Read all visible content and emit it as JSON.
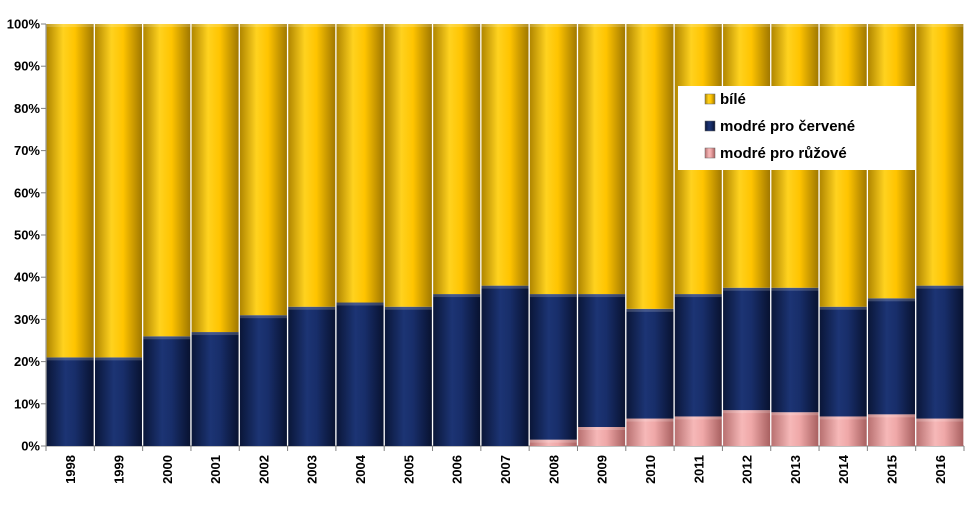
{
  "chart_data": {
    "type": "bar",
    "stacked": true,
    "percent_stacked": true,
    "categories": [
      "1998",
      "1999",
      "2000",
      "2001",
      "2002",
      "2003",
      "2004",
      "2005",
      "2006",
      "2007",
      "2008",
      "2009",
      "2010",
      "2011",
      "2012",
      "2013",
      "2014",
      "2015",
      "2016"
    ],
    "series": [
      {
        "name": "modré pro růžové",
        "color": "#E8A0A0",
        "values": [
          0,
          0,
          0,
          0,
          0,
          0,
          0,
          0,
          0,
          0,
          1.5,
          4.5,
          6.5,
          7,
          8.5,
          8,
          7,
          7.5,
          6.5
        ]
      },
      {
        "name": "modré pro červené",
        "color": "#14285E",
        "values": [
          21,
          21,
          26,
          27,
          31,
          33,
          34,
          33,
          36,
          38,
          34.5,
          31.5,
          26,
          29,
          29,
          29.5,
          26,
          27.5,
          31.5
        ]
      },
      {
        "name": "bílé",
        "color": "#F2C200",
        "values": [
          79,
          79,
          74,
          73,
          69,
          67,
          66,
          67,
          64,
          62,
          64,
          64,
          67.5,
          64,
          62.5,
          62.5,
          67,
          65,
          62
        ]
      }
    ],
    "legend_order": [
      "bílé",
      "modré pro červené",
      "modré pro růžové"
    ],
    "ylim": [
      0,
      100
    ],
    "yticks": [
      "0%",
      "10%",
      "20%",
      "30%",
      "40%",
      "50%",
      "60%",
      "70%",
      "80%",
      "90%",
      "100%"
    ],
    "grid": false,
    "legend_position": "top-right inside",
    "title": "",
    "xlabel": "",
    "ylabel": ""
  }
}
